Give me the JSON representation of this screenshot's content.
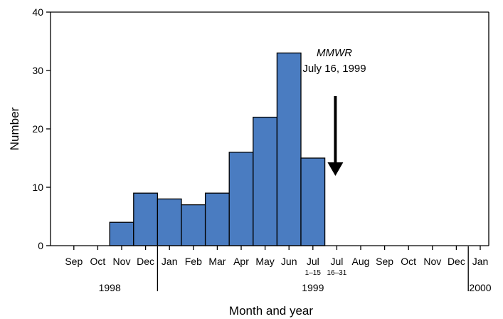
{
  "colors": {
    "bar_fill": "#4A7CC1",
    "bar_stroke": "#000000",
    "axis": "#000000",
    "arrow": "#000000",
    "background": "#ffffff"
  },
  "chart_data": {
    "type": "bar",
    "title": "",
    "xlabel": "Month and year",
    "ylabel": "Number",
    "ylim": [
      0,
      40
    ],
    "yticks": [
      0,
      10,
      20,
      30,
      40
    ],
    "grid": false,
    "legend": "none",
    "categories": [
      {
        "label": "Sep",
        "sub": ""
      },
      {
        "label": "Oct",
        "sub": ""
      },
      {
        "label": "Nov",
        "sub": ""
      },
      {
        "label": "Dec",
        "sub": ""
      },
      {
        "label": "Jan",
        "sub": ""
      },
      {
        "label": "Feb",
        "sub": ""
      },
      {
        "label": "Mar",
        "sub": ""
      },
      {
        "label": "Apr",
        "sub": ""
      },
      {
        "label": "May",
        "sub": ""
      },
      {
        "label": "Jun",
        "sub": ""
      },
      {
        "label": "Jul",
        "sub": "1–15"
      },
      {
        "label": "Jul",
        "sub": "16–31"
      },
      {
        "label": "Aug",
        "sub": ""
      },
      {
        "label": "Sep",
        "sub": ""
      },
      {
        "label": "Oct",
        "sub": ""
      },
      {
        "label": "Nov",
        "sub": ""
      },
      {
        "label": "Dec",
        "sub": ""
      },
      {
        "label": "Jan",
        "sub": ""
      }
    ],
    "values": [
      0,
      0,
      4,
      9,
      8,
      7,
      9,
      16,
      22,
      33,
      15,
      0,
      0,
      0,
      0,
      0,
      0,
      0
    ],
    "years": [
      {
        "label": "1998",
        "first_category": 0,
        "last_category": 3
      },
      {
        "label": "1999",
        "first_category": 4,
        "last_category": 16
      },
      {
        "label": "2000",
        "first_category": 17,
        "last_category": 17
      }
    ],
    "annotation": {
      "title": "MMWR",
      "text": "July 16, 1999",
      "arrow_at_category": 11
    }
  }
}
